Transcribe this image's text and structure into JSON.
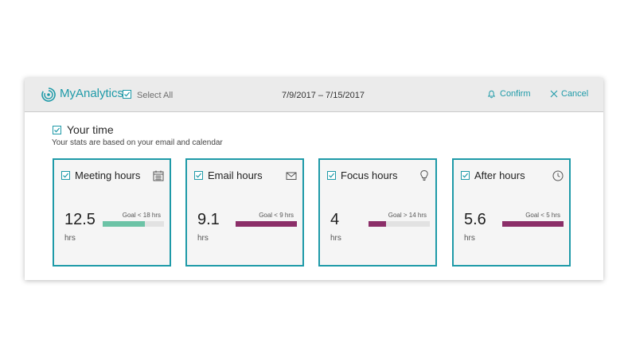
{
  "header": {
    "app_title": "MyAnalytics",
    "select_all_label": "Select All",
    "date_range": "7/9/2017 – 7/15/2017",
    "confirm_label": "Confirm",
    "cancel_label": "Cancel"
  },
  "section": {
    "title": "Your time",
    "subtitle": "Your stats are based on your email and calendar"
  },
  "colors": {
    "accent": "#1e9aa8",
    "good": "#6cc3a6",
    "over": "#8b2e68"
  },
  "cards": [
    {
      "title": "Meeting hours",
      "icon": "calendar-icon",
      "value": "12.5",
      "unit": "hrs",
      "goal": "Goal < 18 hrs",
      "progress": 0.69,
      "status": "good"
    },
    {
      "title": "Email hours",
      "icon": "envelope-icon",
      "value": "9.1",
      "unit": "hrs",
      "goal": "Goal < 9 hrs",
      "progress": 1.0,
      "status": "over"
    },
    {
      "title": "Focus hours",
      "icon": "lightbulb-icon",
      "value": "4",
      "unit": "hrs",
      "goal": "Goal > 14 hrs",
      "progress": 0.29,
      "status": "over"
    },
    {
      "title": "After hours",
      "icon": "clock-icon",
      "value": "5.6",
      "unit": "hrs",
      "goal": "Goal < 5 hrs",
      "progress": 1.0,
      "status": "over"
    }
  ]
}
